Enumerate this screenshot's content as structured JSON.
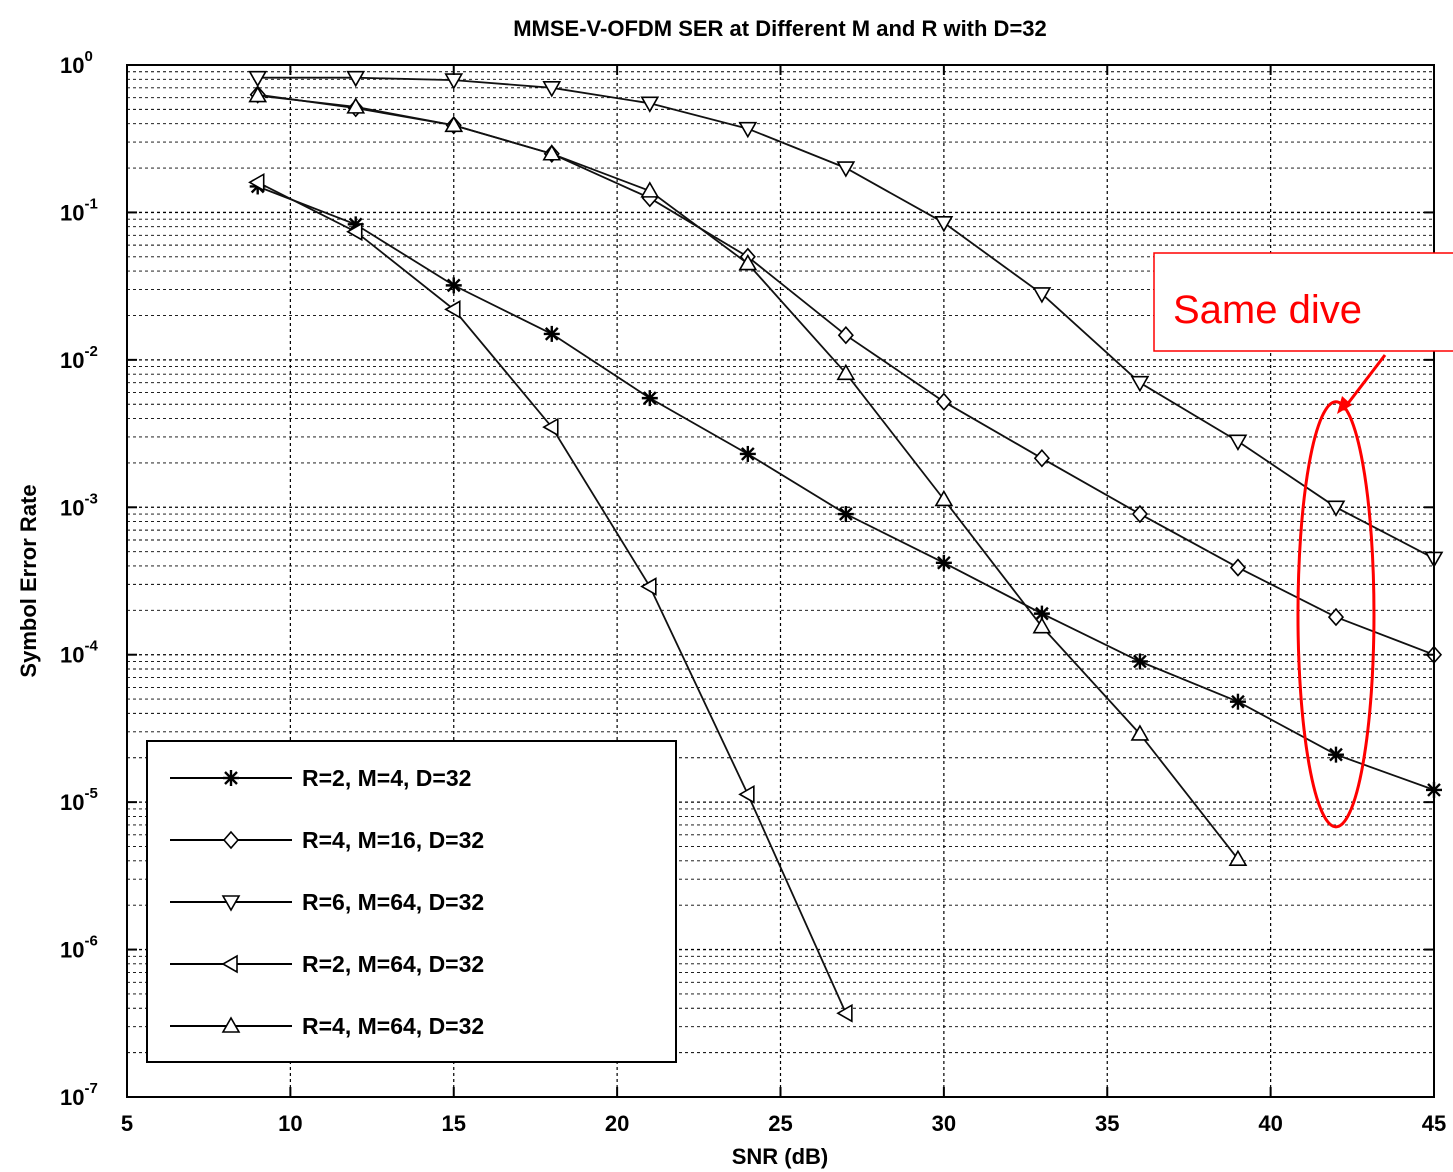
{
  "chart_data": {
    "type": "line",
    "title": "MMSE-V-OFDM SER at Different M and R with D=32",
    "xlabel": "SNR (dB)",
    "ylabel": "Symbol Error Rate",
    "xlim": [
      5,
      45
    ],
    "ylim": [
      1e-07,
      1
    ],
    "yscale": "log",
    "grid": true,
    "legend_position": "bottom-left",
    "xticks": [
      "5",
      "10",
      "15",
      "20",
      "25",
      "30",
      "35",
      "40",
      "45"
    ],
    "yticks": [
      {
        "base": "10",
        "exp": "0"
      },
      {
        "base": "10",
        "exp": "-1"
      },
      {
        "base": "10",
        "exp": "-2"
      },
      {
        "base": "10",
        "exp": "-3"
      },
      {
        "base": "10",
        "exp": "-4"
      },
      {
        "base": "10",
        "exp": "-5"
      },
      {
        "base": "10",
        "exp": "-6"
      },
      {
        "base": "10",
        "exp": "-7"
      }
    ],
    "series": [
      {
        "name": "R=2, M=4, D=32",
        "marker": "star",
        "x": [
          9,
          12,
          15,
          18,
          21,
          24,
          27,
          30,
          33,
          36,
          39,
          42,
          45
        ],
        "y": [
          0.15,
          0.083,
          0.032,
          0.015,
          0.0055,
          0.0023,
          0.0009,
          0.00042,
          0.00019,
          9e-05,
          4.8e-05,
          2.1e-05,
          1.21e-05
        ]
      },
      {
        "name": "R=4, M=16, D=32",
        "marker": "diamond",
        "x": [
          9,
          12,
          15,
          18,
          21,
          24,
          27,
          30,
          33,
          36,
          39,
          42,
          45
        ],
        "y": [
          0.63,
          0.51,
          0.39,
          0.25,
          0.125,
          0.05,
          0.0147,
          0.0052,
          0.00215,
          0.0009,
          0.00039,
          0.00018,
          0.0001
        ]
      },
      {
        "name": "R=6, M=64, D=32",
        "marker": "triangle-down",
        "x": [
          9,
          12,
          15,
          18,
          21,
          24,
          27,
          30,
          33,
          36,
          39,
          42,
          45
        ],
        "y": [
          0.82,
          0.82,
          0.79,
          0.7,
          0.55,
          0.37,
          0.2,
          0.085,
          0.028,
          0.007,
          0.0028,
          0.001,
          0.00045
        ]
      },
      {
        "name": "R=2, M=64, D=32",
        "marker": "triangle-left",
        "x": [
          9,
          12,
          15,
          18,
          21,
          24,
          27
        ],
        "y": [
          0.16,
          0.074,
          0.022,
          0.0035,
          0.00029,
          1.13e-05,
          3.7e-07
        ]
      },
      {
        "name": "R=4, M=64, D=32",
        "marker": "triangle-up",
        "x": [
          9,
          12,
          15,
          18,
          21,
          24,
          27,
          30,
          33,
          36,
          39
        ],
        "y": [
          0.62,
          0.52,
          0.39,
          0.25,
          0.14,
          0.045,
          0.0081,
          0.00113,
          0.000155,
          2.9e-05,
          4.1e-06
        ]
      }
    ],
    "annotation": {
      "text": "Same dive",
      "color": "#ff0000",
      "ellipse_x": 42,
      "ellipse_y_range": [
        6.8e-06,
        0.0052
      ]
    }
  }
}
